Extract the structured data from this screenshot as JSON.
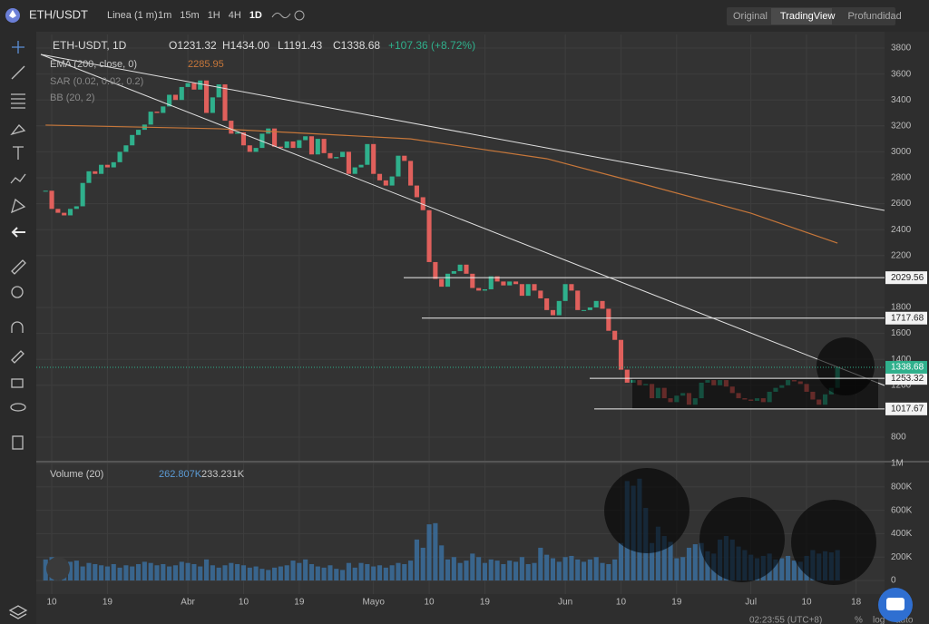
{
  "top_bar": {
    "symbol": "ETH/USDT",
    "chart_mode": "Linea (1 m)",
    "intervals": [
      "1m",
      "15m",
      "1H",
      "4H",
      "1D"
    ],
    "views": [
      "Original",
      "TradingView",
      "Profundidad"
    ]
  },
  "chart_data": {
    "type": "candlestick",
    "symbol_label": "ETH-USDT, 1D",
    "ohlc_label": {
      "open": "O1231.32",
      "high": "H1434.00",
      "low": "L1191.43",
      "close": "C1338.68",
      "change": "+107.36 (+8.72%)"
    },
    "indicators": [
      {
        "name": "EMA (200, close, 0)",
        "value_label": "2285.95"
      },
      {
        "name": "SAR (0.02, 0.02, 0.2)"
      },
      {
        "name": "BB (20, 2)"
      }
    ],
    "volume_legend": {
      "name": "Volume (20)",
      "values": [
        "262.807K",
        "233.231K"
      ]
    },
    "close": [
      2700,
      2560,
      2530,
      2510,
      2560,
      2580,
      2760,
      2850,
      2830,
      2900,
      2880,
      2920,
      3000,
      3050,
      3130,
      3170,
      3210,
      3310,
      3300,
      3350,
      3440,
      3400,
      3500,
      3530,
      3480,
      3550,
      3300,
      3420,
      3520,
      3240,
      3140,
      3150,
      3050,
      3000,
      3030,
      3140,
      3180,
      3040,
      3030,
      3080,
      3030,
      3090,
      3120,
      2980,
      3100,
      2990,
      2950,
      2960,
      3000,
      2830,
      2880,
      2900,
      3060,
      2830,
      2780,
      2740,
      2810,
      2970,
      2930,
      2740,
      2650,
      2550,
      2150,
      2020,
      1960,
      2060,
      2080,
      2130,
      2060,
      1950,
      1930,
      1940,
      2040,
      2000,
      1970,
      2000,
      1980,
      1890,
      1980,
      1930,
      1870,
      1780,
      1740,
      1850,
      1980,
      1930,
      1780,
      1780,
      1800,
      1850,
      1790,
      1620,
      1550,
      1320,
      1220,
      1240,
      1200,
      1210,
      1100,
      1180,
      1100,
      1070,
      1120,
      1140,
      1050,
      1100,
      1220,
      1240,
      1200,
      1240,
      1190,
      1140,
      1100,
      1090,
      1080,
      1100,
      1070,
      1150,
      1180,
      1200,
      1240,
      1230,
      1210,
      1150,
      1090,
      1050,
      1130,
      1180,
      1340
    ],
    "volume": [
      180,
      200,
      170,
      150,
      160,
      170,
      120,
      150,
      140,
      130,
      120,
      140,
      110,
      130,
      120,
      140,
      160,
      150,
      130,
      140,
      120,
      130,
      160,
      150,
      140,
      120,
      180,
      130,
      110,
      130,
      150,
      140,
      130,
      110,
      120,
      100,
      90,
      110,
      120,
      130,
      170,
      150,
      180,
      140,
      120,
      110,
      130,
      100,
      90,
      150,
      110,
      150,
      140,
      120,
      130,
      110,
      130,
      150,
      140,
      170,
      350,
      280,
      480,
      490,
      300,
      180,
      200,
      150,
      170,
      230,
      200,
      150,
      180,
      170,
      140,
      170,
      160,
      200,
      140,
      150,
      280,
      220,
      190,
      160,
      200,
      210,
      180,
      160,
      180,
      200,
      150,
      140,
      180,
      320,
      850,
      810,
      870,
      620,
      320,
      460,
      380,
      330,
      190,
      200,
      280,
      310,
      320,
      250,
      230,
      350,
      380,
      350,
      290,
      260,
      220,
      190,
      210,
      230,
      180,
      190,
      210,
      170,
      160,
      210,
      260,
      230,
      250,
      240,
      260
    ],
    "ema": {
      "x": [
        0,
        28,
        59,
        81,
        95,
        114,
        128
      ],
      "values": [
        3206,
        3178,
        3100,
        2947,
        2772,
        2527,
        2296
      ],
      "color": "#c7773a"
    },
    "up_color": "#2fb08c",
    "down_color": "#e0605c",
    "volume_color": "#3b6f9e",
    "xlim": [
      -1.5,
      135.6
    ],
    "xticks": [
      {
        "value": 1,
        "label": "10"
      },
      {
        "value": 10,
        "label": "19"
      },
      {
        "value": 23,
        "label": "Abr"
      },
      {
        "value": 32,
        "label": "10"
      },
      {
        "value": 41,
        "label": "19"
      },
      {
        "value": 53,
        "label": "Mayo"
      },
      {
        "value": 62,
        "label": "10"
      },
      {
        "value": 71,
        "label": "19"
      },
      {
        "value": 84,
        "label": "Jun"
      },
      {
        "value": 93,
        "label": "10"
      },
      {
        "value": 102,
        "label": "19"
      },
      {
        "value": 114,
        "label": "Jul"
      },
      {
        "value": 123,
        "label": "10"
      },
      {
        "value": 131,
        "label": "18"
      }
    ],
    "ylim": [
      618,
      3905
    ],
    "yticks": [
      800,
      1200,
      1400,
      1600,
      1800,
      2200,
      2400,
      2600,
      2800,
      3000,
      3200,
      3400,
      3600,
      3800
    ],
    "volume_ylim": [
      -116,
      1008
    ],
    "volume_yticks": [
      0,
      {
        "value": 200,
        "label": "200K"
      },
      {
        "value": 400,
        "label": "400K"
      },
      {
        "value": 600,
        "label": "600K"
      },
      {
        "value": 800,
        "label": "800K"
      },
      {
        "value": 1000,
        "label": "1M"
      }
    ],
    "levels": [
      2029.56,
      1717.68,
      1253.32,
      1017.67
    ],
    "last_price": 1338.68,
    "grid": true
  },
  "footer": {
    "time": "02:23:55 (UTC+8)",
    "options": [
      "%",
      "log",
      "auto"
    ]
  }
}
